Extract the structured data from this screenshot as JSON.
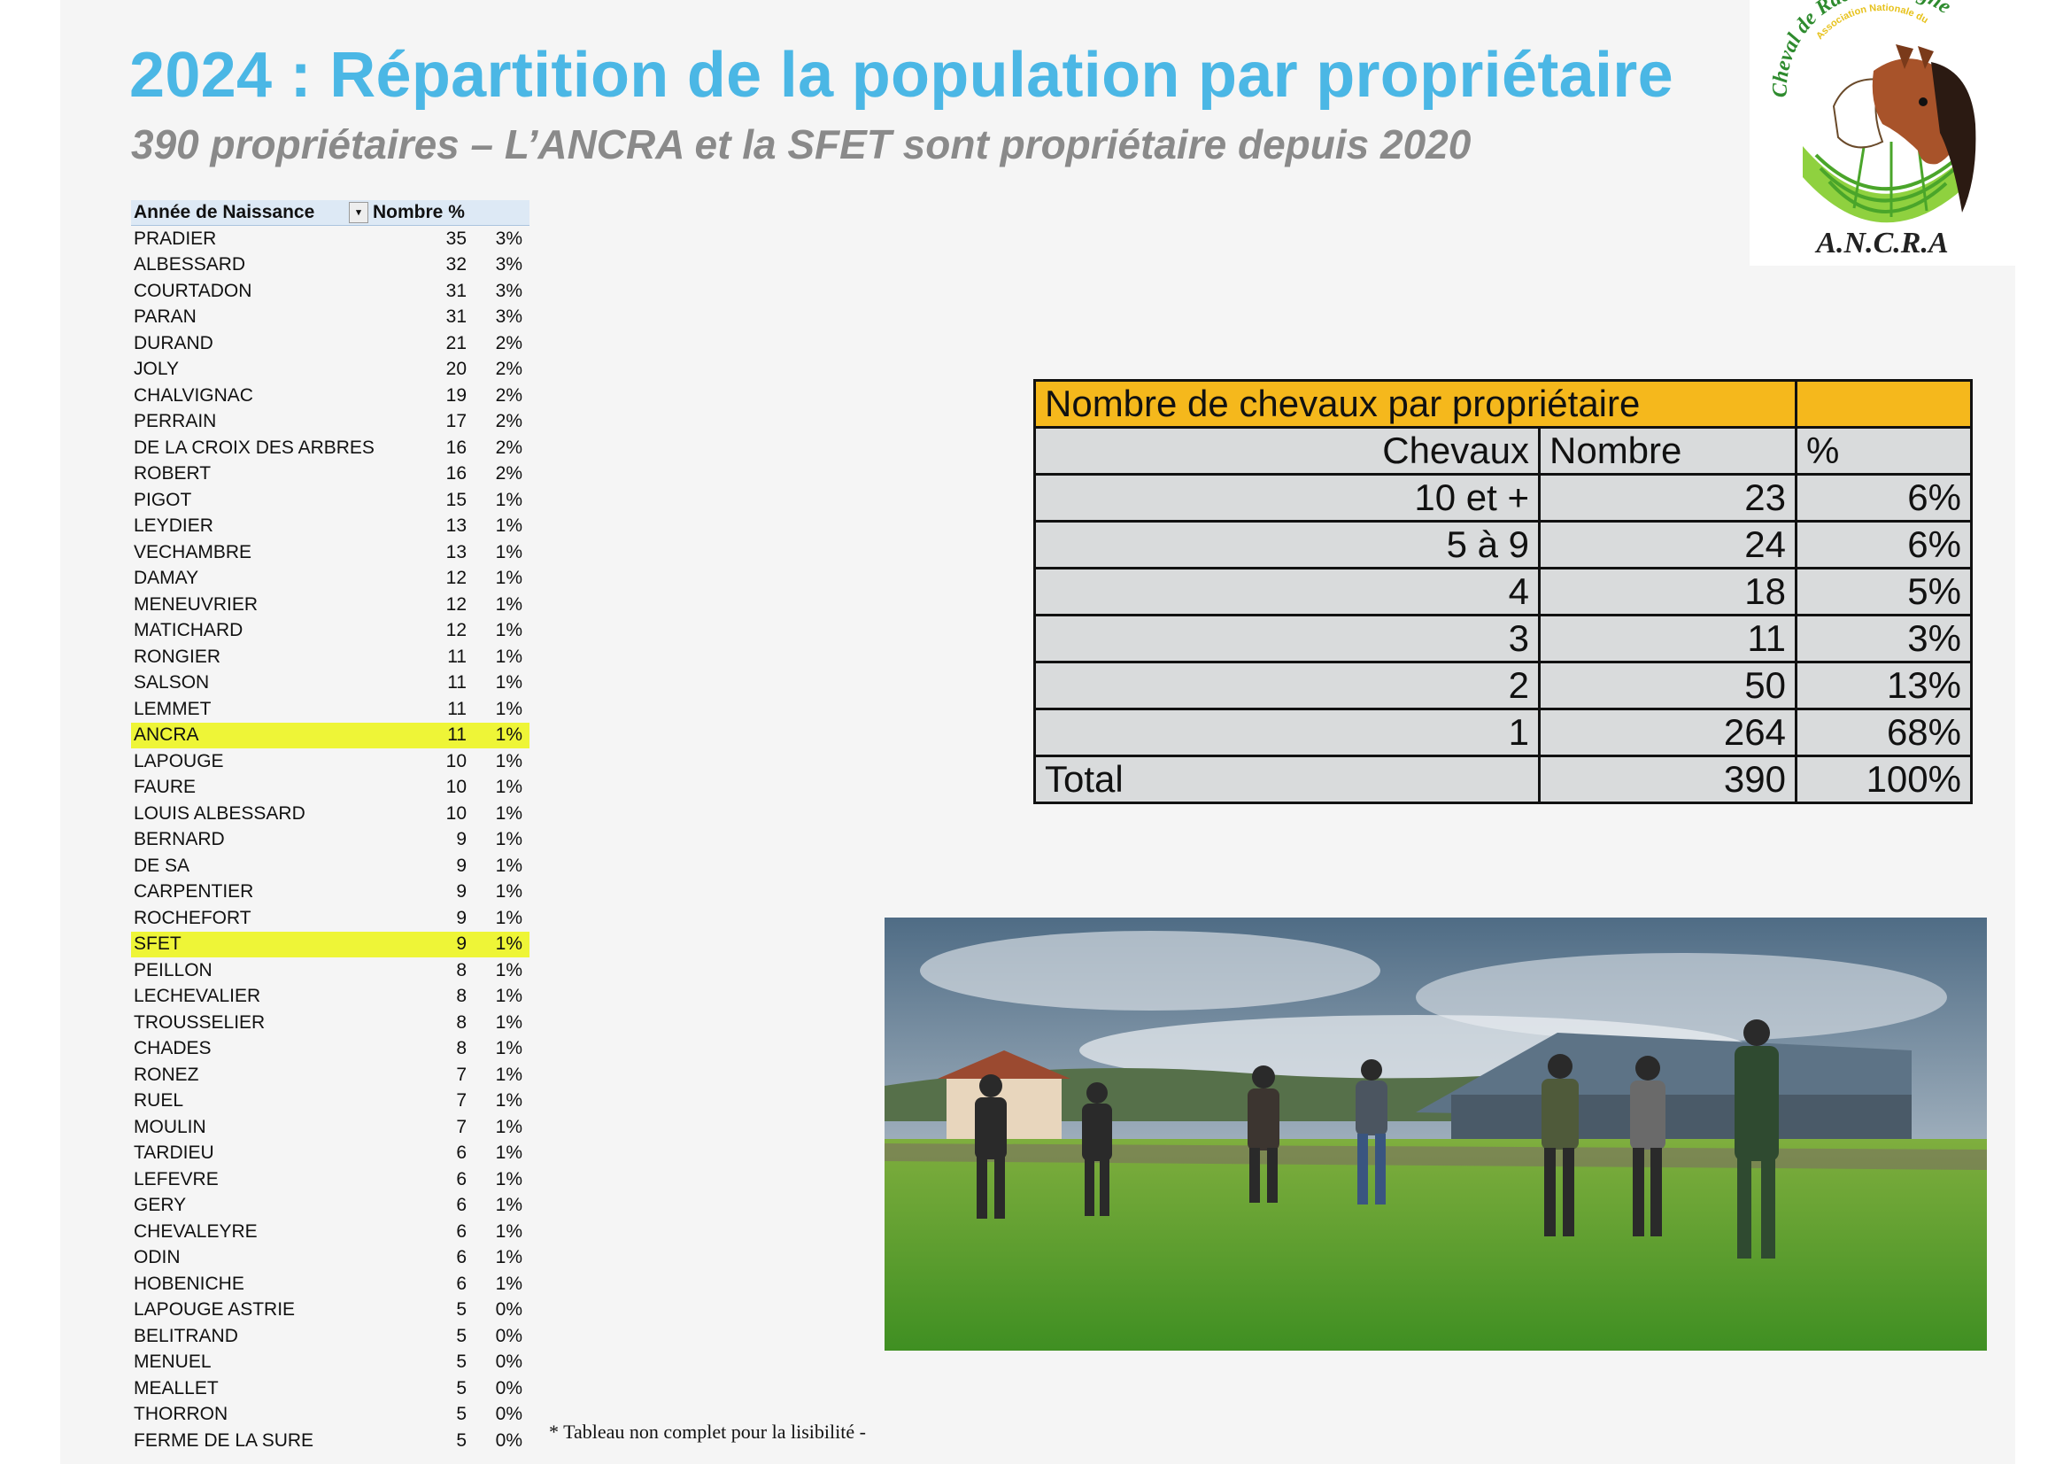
{
  "header": {
    "title": "2024 : Répartition de la population par propriétaire",
    "subtitle": "390 propriétaires – L’ANCRA et la SFET sont propriétaire depuis 2020"
  },
  "logo": {
    "top_text": "Association Nationale du",
    "arc_text": "Cheval de Race Auvergne",
    "bottom_text": "A.N.C.R.A"
  },
  "owners_table": {
    "headers": [
      "Année de Naissance",
      "Nombre",
      "%"
    ],
    "rows": [
      {
        "name": "PRADIER",
        "count": "35",
        "pct": "3%"
      },
      {
        "name": "ALBESSARD",
        "count": "32",
        "pct": "3%"
      },
      {
        "name": "COURTADON",
        "count": "31",
        "pct": "3%"
      },
      {
        "name": "PARAN",
        "count": "31",
        "pct": "3%"
      },
      {
        "name": "DURAND",
        "count": "21",
        "pct": "2%"
      },
      {
        "name": "JOLY",
        "count": "20",
        "pct": "2%"
      },
      {
        "name": "CHALVIGNAC",
        "count": "19",
        "pct": "2%"
      },
      {
        "name": "PERRAIN",
        "count": "17",
        "pct": "2%"
      },
      {
        "name": "DE LA CROIX DES ARBRES",
        "count": "16",
        "pct": "2%"
      },
      {
        "name": "ROBERT",
        "count": "16",
        "pct": "2%"
      },
      {
        "name": "PIGOT",
        "count": "15",
        "pct": "1%"
      },
      {
        "name": "LEYDIER",
        "count": "13",
        "pct": "1%"
      },
      {
        "name": "VECHAMBRE",
        "count": "13",
        "pct": "1%"
      },
      {
        "name": "DAMAY",
        "count": "12",
        "pct": "1%"
      },
      {
        "name": "MENEUVRIER",
        "count": "12",
        "pct": "1%"
      },
      {
        "name": "MATICHARD",
        "count": "12",
        "pct": "1%"
      },
      {
        "name": "RONGIER",
        "count": "11",
        "pct": "1%"
      },
      {
        "name": "SALSON",
        "count": "11",
        "pct": "1%"
      },
      {
        "name": "LEMMET",
        "count": "11",
        "pct": "1%"
      },
      {
        "name": "ANCRA",
        "count": "11",
        "pct": "1%",
        "highlight": true
      },
      {
        "name": "LAPOUGE",
        "count": "10",
        "pct": "1%"
      },
      {
        "name": "FAURE",
        "count": "10",
        "pct": "1%"
      },
      {
        "name": "LOUIS ALBESSARD",
        "count": "10",
        "pct": "1%"
      },
      {
        "name": "BERNARD",
        "count": "9",
        "pct": "1%"
      },
      {
        "name": "DE SA",
        "count": "9",
        "pct": "1%"
      },
      {
        "name": "CARPENTIER",
        "count": "9",
        "pct": "1%"
      },
      {
        "name": "ROCHEFORT",
        "count": "9",
        "pct": "1%"
      },
      {
        "name": "SFET",
        "count": "9",
        "pct": "1%",
        "highlight": true
      },
      {
        "name": "PEILLON",
        "count": "8",
        "pct": "1%"
      },
      {
        "name": "LECHEVALIER",
        "count": "8",
        "pct": "1%"
      },
      {
        "name": "TROUSSELIER",
        "count": "8",
        "pct": "1%"
      },
      {
        "name": "CHADES",
        "count": "8",
        "pct": "1%"
      },
      {
        "name": "RONEZ",
        "count": "7",
        "pct": "1%"
      },
      {
        "name": "RUEL",
        "count": "7",
        "pct": "1%"
      },
      {
        "name": "MOULIN",
        "count": "7",
        "pct": "1%"
      },
      {
        "name": "TARDIEU",
        "count": "6",
        "pct": "1%"
      },
      {
        "name": "LEFEVRE",
        "count": "6",
        "pct": "1%"
      },
      {
        "name": "GERY",
        "count": "6",
        "pct": "1%"
      },
      {
        "name": "CHEVALEYRE",
        "count": "6",
        "pct": "1%"
      },
      {
        "name": "ODIN",
        "count": "6",
        "pct": "1%"
      },
      {
        "name": "HOBENICHE",
        "count": "6",
        "pct": "1%"
      },
      {
        "name": "LAPOUGE ASTRIE",
        "count": "5",
        "pct": "0%"
      },
      {
        "name": "BELITRAND",
        "count": "5",
        "pct": "0%"
      },
      {
        "name": "MENUEL",
        "count": "5",
        "pct": "0%"
      },
      {
        "name": "MEALLET",
        "count": "5",
        "pct": "0%"
      },
      {
        "name": "THORRON",
        "count": "5",
        "pct": "0%"
      },
      {
        "name": "FERME DE LA SURE",
        "count": "5",
        "pct": "0%"
      }
    ],
    "footnote": "* Tableau non complet pour la lisibilité -"
  },
  "summary_table": {
    "title": "Nombre de chevaux par propriétaire",
    "headers": [
      "Chevaux",
      "Nombre",
      "%"
    ],
    "rows": [
      {
        "chevaux": "10 et +",
        "nombre": "23",
        "pct": "6%"
      },
      {
        "chevaux": "5 à 9",
        "nombre": "24",
        "pct": "6%"
      },
      {
        "chevaux": "4",
        "nombre": "18",
        "pct": "5%"
      },
      {
        "chevaux": "3",
        "nombre": "11",
        "pct": "3%"
      },
      {
        "chevaux": "2",
        "nombre": "50",
        "pct": "13%"
      },
      {
        "chevaux": "1",
        "nombre": "264",
        "pct": "68%"
      }
    ],
    "total": {
      "label": "Total",
      "nombre": "390",
      "pct": "100%"
    }
  },
  "colors": {
    "title": "#4bb7e5",
    "subtitle": "#8a8a8a",
    "highlight": "#eef537",
    "summary_header": "#f5b81c",
    "summary_cell": "#d9dbdc"
  }
}
